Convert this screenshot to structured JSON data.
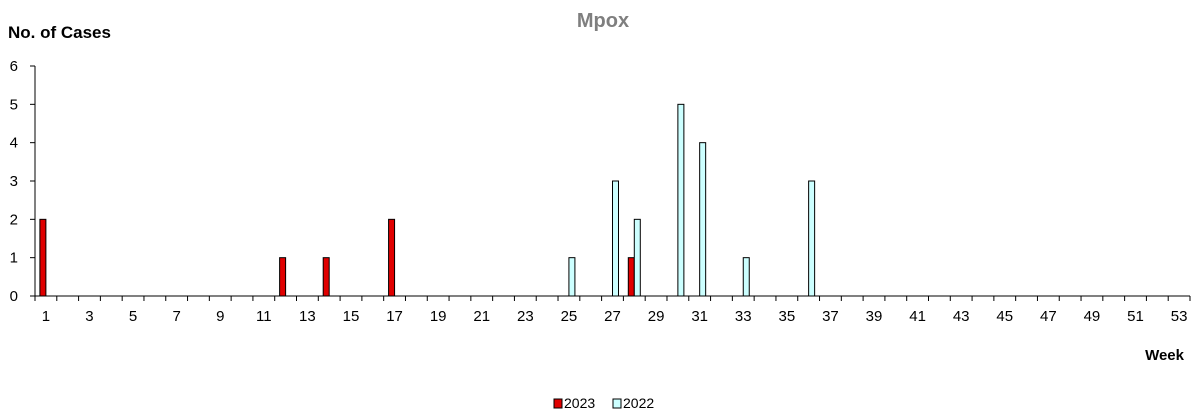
{
  "chart_data": {
    "type": "bar",
    "title": "Mpox",
    "ylabel": "No. of Cases",
    "xlabel": "Week",
    "ylim": [
      0,
      6
    ],
    "yticks": [
      0,
      1,
      2,
      3,
      4,
      5,
      6
    ],
    "xrange": [
      1,
      53
    ],
    "xticks": [
      1,
      3,
      5,
      7,
      9,
      11,
      13,
      15,
      17,
      19,
      21,
      23,
      25,
      27,
      29,
      31,
      33,
      35,
      37,
      39,
      41,
      43,
      45,
      47,
      49,
      51,
      53
    ],
    "grid": false,
    "legend_position": "bottom-center",
    "series": [
      {
        "name": "2023",
        "color": "#e00000",
        "points": [
          {
            "week": 1,
            "value": 2
          },
          {
            "week": 12,
            "value": 1
          },
          {
            "week": 14,
            "value": 1
          },
          {
            "week": 17,
            "value": 2
          },
          {
            "week": 28,
            "value": 1
          }
        ]
      },
      {
        "name": "2022",
        "color": "#ccffff",
        "points": [
          {
            "week": 25,
            "value": 1
          },
          {
            "week": 27,
            "value": 3
          },
          {
            "week": 28,
            "value": 2
          },
          {
            "week": 30,
            "value": 5
          },
          {
            "week": 31,
            "value": 4
          },
          {
            "week": 33,
            "value": 1
          },
          {
            "week": 36,
            "value": 3
          }
        ]
      }
    ]
  }
}
